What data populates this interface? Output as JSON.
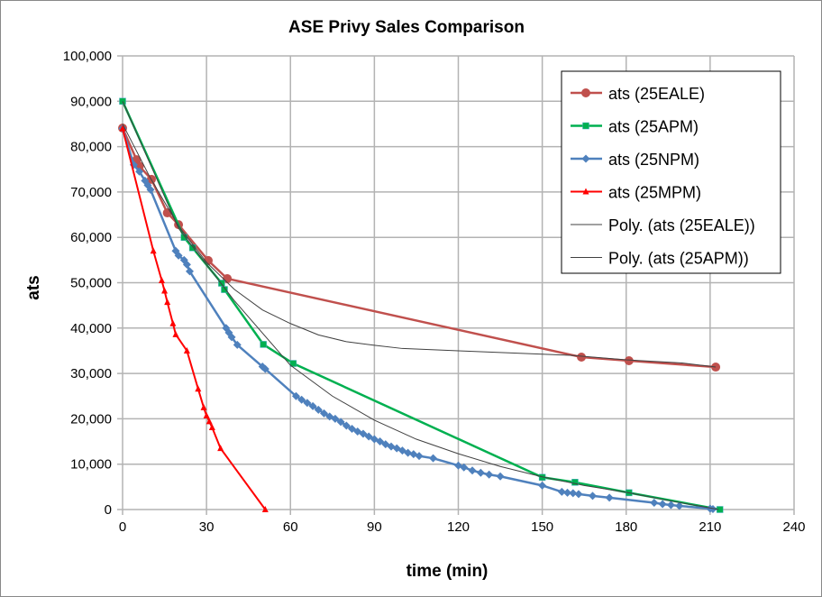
{
  "chart_data": {
    "type": "line",
    "title": "ASE Privy Sales Comparison",
    "xlabel": "time (min)",
    "ylabel": "ats",
    "xlim": [
      0,
      240
    ],
    "ylim": [
      0,
      100000
    ],
    "xticks": [
      0,
      30,
      60,
      90,
      120,
      150,
      180,
      210,
      240
    ],
    "yticks": [
      0,
      10000,
      20000,
      30000,
      40000,
      50000,
      60000,
      70000,
      80000,
      90000,
      100000
    ],
    "ytick_labels": [
      "0",
      "10,000",
      "20,000",
      "30,000",
      "40,000",
      "50,000",
      "60,000",
      "70,000",
      "80,000",
      "90,000",
      "100,000"
    ],
    "grid": true,
    "legend_position": "top-right",
    "series": [
      {
        "name": "ats (25EALE)",
        "color": "#c0504d",
        "marker": "circle",
        "width": 2.5,
        "points": [
          [
            0,
            84100
          ],
          [
            5,
            77100
          ],
          [
            6,
            75700
          ],
          [
            10.3,
            72800
          ],
          [
            16,
            65400
          ],
          [
            20,
            62800
          ],
          [
            30.6,
            54900
          ],
          [
            37.4,
            50900
          ],
          [
            164,
            33600
          ],
          [
            181,
            32800
          ],
          [
            212,
            31400
          ]
        ]
      },
      {
        "name": "ats (25APM)",
        "color": "#00b050",
        "marker": "square",
        "width": 2.5,
        "points": [
          [
            0,
            90000
          ],
          [
            22,
            60000
          ],
          [
            25,
            57700
          ],
          [
            35.4,
            49900
          ],
          [
            36.4,
            48500
          ],
          [
            50.3,
            36400
          ],
          [
            61,
            32200
          ],
          [
            150,
            7100
          ],
          [
            161.7,
            6000
          ],
          [
            181,
            3700
          ],
          [
            213.5,
            0
          ]
        ]
      },
      {
        "name": "ats (25NPM)",
        "color": "#4f81bd",
        "marker": "diamond",
        "width": 2.5,
        "points": [
          [
            0,
            84000
          ],
          [
            4,
            76000
          ],
          [
            6,
            74500
          ],
          [
            8,
            72500
          ],
          [
            9,
            71500
          ],
          [
            10,
            70500
          ],
          [
            19,
            57000
          ],
          [
            20,
            56000
          ],
          [
            22,
            55000
          ],
          [
            23,
            54000
          ],
          [
            24,
            52500
          ],
          [
            37,
            40000
          ],
          [
            38,
            39000
          ],
          [
            39,
            38000
          ],
          [
            41,
            36300
          ],
          [
            50,
            31500
          ],
          [
            51,
            31000
          ],
          [
            62,
            25000
          ],
          [
            64,
            24200
          ],
          [
            66,
            23500
          ],
          [
            68,
            22800
          ],
          [
            70,
            22000
          ],
          [
            72,
            21200
          ],
          [
            74,
            20500
          ],
          [
            76,
            20000
          ],
          [
            78,
            19300
          ],
          [
            80,
            18500
          ],
          [
            82,
            17800
          ],
          [
            84,
            17200
          ],
          [
            86,
            16700
          ],
          [
            88,
            16100
          ],
          [
            90,
            15500
          ],
          [
            92,
            15000
          ],
          [
            94,
            14400
          ],
          [
            96,
            13900
          ],
          [
            98,
            13500
          ],
          [
            100,
            13000
          ],
          [
            102,
            12500
          ],
          [
            104,
            12200
          ],
          [
            106,
            11800
          ],
          [
            111,
            11300
          ],
          [
            120,
            9700
          ],
          [
            122,
            9300
          ],
          [
            125,
            8600
          ],
          [
            128,
            8100
          ],
          [
            131,
            7700
          ],
          [
            135,
            7300
          ],
          [
            150,
            5300
          ],
          [
            157,
            3900
          ],
          [
            159,
            3700
          ],
          [
            161,
            3600
          ],
          [
            163,
            3400
          ],
          [
            168,
            3000
          ],
          [
            174,
            2600
          ],
          [
            190,
            1500
          ],
          [
            193,
            1200
          ],
          [
            196,
            1000
          ],
          [
            199,
            800
          ],
          [
            210,
            200
          ],
          [
            211,
            100
          ]
        ]
      },
      {
        "name": "ats (25MPM)",
        "color": "#ff0000",
        "marker": "triangle",
        "width": 2,
        "points": [
          [
            0,
            84000
          ],
          [
            11,
            57000
          ],
          [
            14,
            50500
          ],
          [
            15,
            48200
          ],
          [
            16,
            45700
          ],
          [
            18,
            41000
          ],
          [
            19,
            38600
          ],
          [
            23,
            35000
          ],
          [
            27,
            26600
          ],
          [
            29,
            22500
          ],
          [
            30,
            20700
          ],
          [
            31,
            19400
          ],
          [
            32,
            18100
          ],
          [
            35,
            13500
          ],
          [
            51,
            0
          ]
        ]
      },
      {
        "name": "Poly. (ats (25EALE))",
        "color": "#404040",
        "marker": "none",
        "width": 1,
        "points": [
          [
            0,
            85000
          ],
          [
            10,
            73000
          ],
          [
            20,
            62500
          ],
          [
            30,
            54500
          ],
          [
            40,
            48500
          ],
          [
            50,
            44000
          ],
          [
            60,
            41000
          ],
          [
            70,
            38500
          ],
          [
            80,
            37000
          ],
          [
            90,
            36200
          ],
          [
            100,
            35500
          ],
          [
            120,
            35000
          ],
          [
            140,
            34500
          ],
          [
            160,
            34000
          ],
          [
            180,
            33000
          ],
          [
            200,
            32300
          ],
          [
            212,
            31400
          ]
        ]
      },
      {
        "name": "Poly. (ats (25APM))",
        "color": "#404040",
        "marker": "none",
        "width": 1,
        "points": [
          [
            0,
            90000
          ],
          [
            20,
            62000
          ],
          [
            40,
            46000
          ],
          [
            60,
            31800
          ],
          [
            75,
            25000
          ],
          [
            90,
            19700
          ],
          [
            105,
            15500
          ],
          [
            120,
            12300
          ],
          [
            135,
            9500
          ],
          [
            150,
            7200
          ],
          [
            165,
            5300
          ],
          [
            180,
            3800
          ],
          [
            195,
            2000
          ],
          [
            213,
            0
          ]
        ]
      }
    ]
  }
}
